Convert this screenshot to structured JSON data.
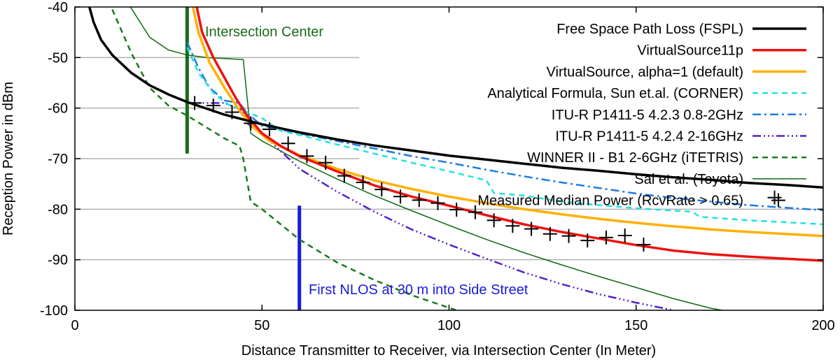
{
  "chart_data": {
    "type": "line",
    "xlabel": "Distance Transmitter to Receiver, via Intersection Center (In Meter)",
    "ylabel": "Reception Power in dBm",
    "xlim": [
      0,
      200
    ],
    "ylim": [
      -100,
      -40
    ],
    "xticks": [
      "0",
      "50",
      "100",
      "150",
      "200"
    ],
    "yticks": [
      "-40",
      "-50",
      "-60",
      "-70",
      "-80",
      "-90",
      "-100"
    ],
    "grid": "horizontal",
    "legend_position": "top-right",
    "series": [
      {
        "name": "Free Space Path Loss (FSPL)",
        "color": "#000000",
        "dash": "solid",
        "width": 3.5,
        "points": [
          [
            3.5,
            -39
          ],
          [
            5,
            -43
          ],
          [
            7,
            -46.5
          ],
          [
            10,
            -49.5
          ],
          [
            15,
            -53
          ],
          [
            20,
            -55.5
          ],
          [
            25,
            -57.3
          ],
          [
            30,
            -58.8
          ],
          [
            40,
            -61.3
          ],
          [
            50,
            -63.2
          ],
          [
            60,
            -64.8
          ],
          [
            70,
            -66.2
          ],
          [
            80,
            -67.4
          ],
          [
            90,
            -68.4
          ],
          [
            100,
            -69.4
          ],
          [
            110,
            -70.2
          ],
          [
            120,
            -71
          ],
          [
            130,
            -71.8
          ],
          [
            140,
            -72.4
          ],
          [
            150,
            -73.1
          ],
          [
            160,
            -73.7
          ],
          [
            170,
            -74.2
          ],
          [
            180,
            -74.8
          ],
          [
            190,
            -75.2
          ],
          [
            200,
            -75.7
          ]
        ]
      },
      {
        "name": "VirtualSource11p",
        "color": "#ee1111",
        "dash": "solid",
        "width": 3.5,
        "points": [
          [
            32,
            -38
          ],
          [
            34,
            -45
          ],
          [
            37,
            -50
          ],
          [
            40,
            -54
          ],
          [
            43,
            -58
          ],
          [
            46,
            -61.5
          ],
          [
            50,
            -65
          ],
          [
            55,
            -67.5
          ],
          [
            60,
            -69.5
          ],
          [
            70,
            -72.5
          ],
          [
            80,
            -75.3
          ],
          [
            90,
            -77.5
          ],
          [
            100,
            -79.3
          ],
          [
            110,
            -81.2
          ],
          [
            120,
            -83
          ],
          [
            130,
            -84.5
          ],
          [
            140,
            -85.8
          ],
          [
            150,
            -87.1
          ],
          [
            160,
            -88.2
          ],
          [
            170,
            -88.9
          ],
          [
            180,
            -89.4
          ],
          [
            200,
            -90.2
          ]
        ]
      },
      {
        "name": "VirtualSource, alpha=1 (default)",
        "color": "#ffb000",
        "dash": "solid",
        "width": 3.5,
        "points": [
          [
            31,
            -38
          ],
          [
            33,
            -45
          ],
          [
            36,
            -51
          ],
          [
            40,
            -56
          ],
          [
            44,
            -60.5
          ],
          [
            48,
            -64
          ],
          [
            52,
            -66.5
          ],
          [
            60,
            -69.3
          ],
          [
            70,
            -72
          ],
          [
            80,
            -74.3
          ],
          [
            90,
            -76
          ],
          [
            100,
            -77.5
          ],
          [
            110,
            -78.8
          ],
          [
            120,
            -80
          ],
          [
            130,
            -81
          ],
          [
            140,
            -81.9
          ],
          [
            150,
            -82.7
          ],
          [
            160,
            -83.4
          ],
          [
            170,
            -84
          ],
          [
            180,
            -84.5
          ],
          [
            190,
            -84.9
          ],
          [
            200,
            -85.3
          ]
        ]
      },
      {
        "name": "Analytical Formula, Sun et.al. (CORNER)",
        "color": "#22e0e0",
        "dash": "8,6",
        "width": 2.5,
        "points": [
          [
            30,
            -48
          ],
          [
            33,
            -53
          ],
          [
            37,
            -57
          ],
          [
            41,
            -59.3
          ],
          [
            45,
            -60.5
          ],
          [
            50,
            -62
          ],
          [
            55,
            -64.5
          ],
          [
            60,
            -65.3
          ],
          [
            70,
            -67.2
          ],
          [
            80,
            -69
          ],
          [
            90,
            -70.8
          ],
          [
            100,
            -72.5
          ],
          [
            110,
            -74.3
          ],
          [
            112,
            -76.8
          ],
          [
            120,
            -77.3
          ],
          [
            130,
            -78.5
          ],
          [
            140,
            -79.2
          ],
          [
            150,
            -79.8
          ],
          [
            160,
            -80.3
          ],
          [
            165,
            -80.5
          ],
          [
            167,
            -81.5
          ],
          [
            180,
            -82.2
          ],
          [
            200,
            -83
          ]
        ]
      },
      {
        "name": "ITU-R P1411-5 4.2.3 0.8-2GHz",
        "color": "#1e7be0",
        "dash": "12,5,3,5",
        "width": 2.5,
        "points": [
          [
            30,
            -47
          ],
          [
            33,
            -52
          ],
          [
            36,
            -56
          ],
          [
            40,
            -58.5
          ],
          [
            44,
            -59
          ],
          [
            46,
            -61
          ],
          [
            50,
            -63.5
          ],
          [
            60,
            -65
          ],
          [
            70,
            -66.5
          ],
          [
            80,
            -68
          ],
          [
            90,
            -69.5
          ],
          [
            100,
            -70.8
          ],
          [
            110,
            -72.2
          ],
          [
            120,
            -73.5
          ],
          [
            130,
            -74.7
          ],
          [
            140,
            -75.8
          ],
          [
            150,
            -76.9
          ],
          [
            160,
            -77.8
          ],
          [
            170,
            -78.5
          ],
          [
            180,
            -79.2
          ],
          [
            190,
            -79.7
          ],
          [
            200,
            -80.2
          ]
        ]
      },
      {
        "name": "ITU-R P1411-5 4.2.4 2-16GHz",
        "color": "#5522cc",
        "dash": "12,4,2,4,2,4,2,4",
        "width": 2.5,
        "points": [
          [
            30,
            -59
          ],
          [
            35,
            -59
          ],
          [
            40,
            -59
          ],
          [
            45,
            -60.5
          ],
          [
            46,
            -63
          ],
          [
            50,
            -65
          ],
          [
            55,
            -68.5
          ],
          [
            60,
            -72
          ],
          [
            70,
            -76.5
          ],
          [
            80,
            -80.5
          ],
          [
            90,
            -84
          ],
          [
            100,
            -87
          ],
          [
            110,
            -89.8
          ],
          [
            120,
            -92.5
          ],
          [
            130,
            -94.8
          ],
          [
            140,
            -96.8
          ],
          [
            150,
            -98.5
          ],
          [
            160,
            -100
          ]
        ]
      },
      {
        "name": "WINNER II - B1 2-6GHz (iTETRIS)",
        "color": "#1a7a1a",
        "dash": "8,6",
        "width": 2.5,
        "points": [
          [
            10,
            -40.5
          ],
          [
            15,
            -49
          ],
          [
            20,
            -56
          ],
          [
            25,
            -59.5
          ],
          [
            30,
            -61.5
          ],
          [
            40,
            -66
          ],
          [
            44,
            -67.5
          ],
          [
            45,
            -70
          ],
          [
            47,
            -78.5
          ],
          [
            50,
            -80
          ],
          [
            60,
            -86
          ],
          [
            70,
            -90.5
          ],
          [
            80,
            -94
          ],
          [
            90,
            -97
          ],
          [
            100,
            -99.5
          ],
          [
            102,
            -100
          ]
        ]
      },
      {
        "name": "Sai et al. (Toyota)",
        "color": "#0e6a0e",
        "dash": "solid",
        "width": 1.5,
        "points": [
          [
            14,
            -39
          ],
          [
            20,
            -46
          ],
          [
            25,
            -48.5
          ],
          [
            30,
            -49.5
          ],
          [
            35,
            -50
          ],
          [
            45,
            -50.4
          ],
          [
            47,
            -65
          ],
          [
            50,
            -66.5
          ],
          [
            60,
            -70.5
          ],
          [
            70,
            -74
          ],
          [
            80,
            -77.3
          ],
          [
            90,
            -80.3
          ],
          [
            100,
            -83.2
          ],
          [
            110,
            -86
          ],
          [
            120,
            -88.6
          ],
          [
            130,
            -91
          ],
          [
            140,
            -93.3
          ],
          [
            150,
            -95.5
          ],
          [
            160,
            -97.7
          ],
          [
            170,
            -99.6
          ],
          [
            173,
            -100
          ]
        ]
      }
    ],
    "measured": {
      "name": "Measured Median Power (RcvRate > 0.65)",
      "marker": "plus",
      "points": [
        [
          32,
          -59
        ],
        [
          37,
          -59.5
        ],
        [
          42,
          -60.8
        ],
        [
          47,
          -63
        ],
        [
          52,
          -64.2
        ],
        [
          57,
          -67
        ],
        [
          62,
          -69.5
        ],
        [
          67,
          -70.8
        ],
        [
          72,
          -73.4
        ],
        [
          77,
          -74.7
        ],
        [
          82,
          -76.1
        ],
        [
          87,
          -77.5
        ],
        [
          92,
          -78.2
        ],
        [
          97,
          -78.8
        ],
        [
          102,
          -80.1
        ],
        [
          107,
          -80.6
        ],
        [
          112,
          -82.2
        ],
        [
          117,
          -83.3
        ],
        [
          122,
          -83.9
        ],
        [
          127,
          -84.9
        ],
        [
          132,
          -85.3
        ],
        [
          137,
          -86.2
        ],
        [
          142,
          -85.6
        ],
        [
          147,
          -85.2
        ],
        [
          152,
          -87
        ],
        [
          187,
          -77.7
        ]
      ]
    },
    "annotations": [
      {
        "text": "Intersection Center",
        "color": "#1a6b1a"
      },
      {
        "text": "First NLOS at 30 m into Side Street",
        "color": "#1a1add"
      }
    ],
    "vertical_markers": [
      {
        "x": 30,
        "y_top": -40,
        "y_bottom": -69,
        "color": "#1a6b1a"
      },
      {
        "x": 60,
        "y_top": -79.3,
        "y_bottom": -100,
        "color": "#1a1add"
      }
    ]
  }
}
